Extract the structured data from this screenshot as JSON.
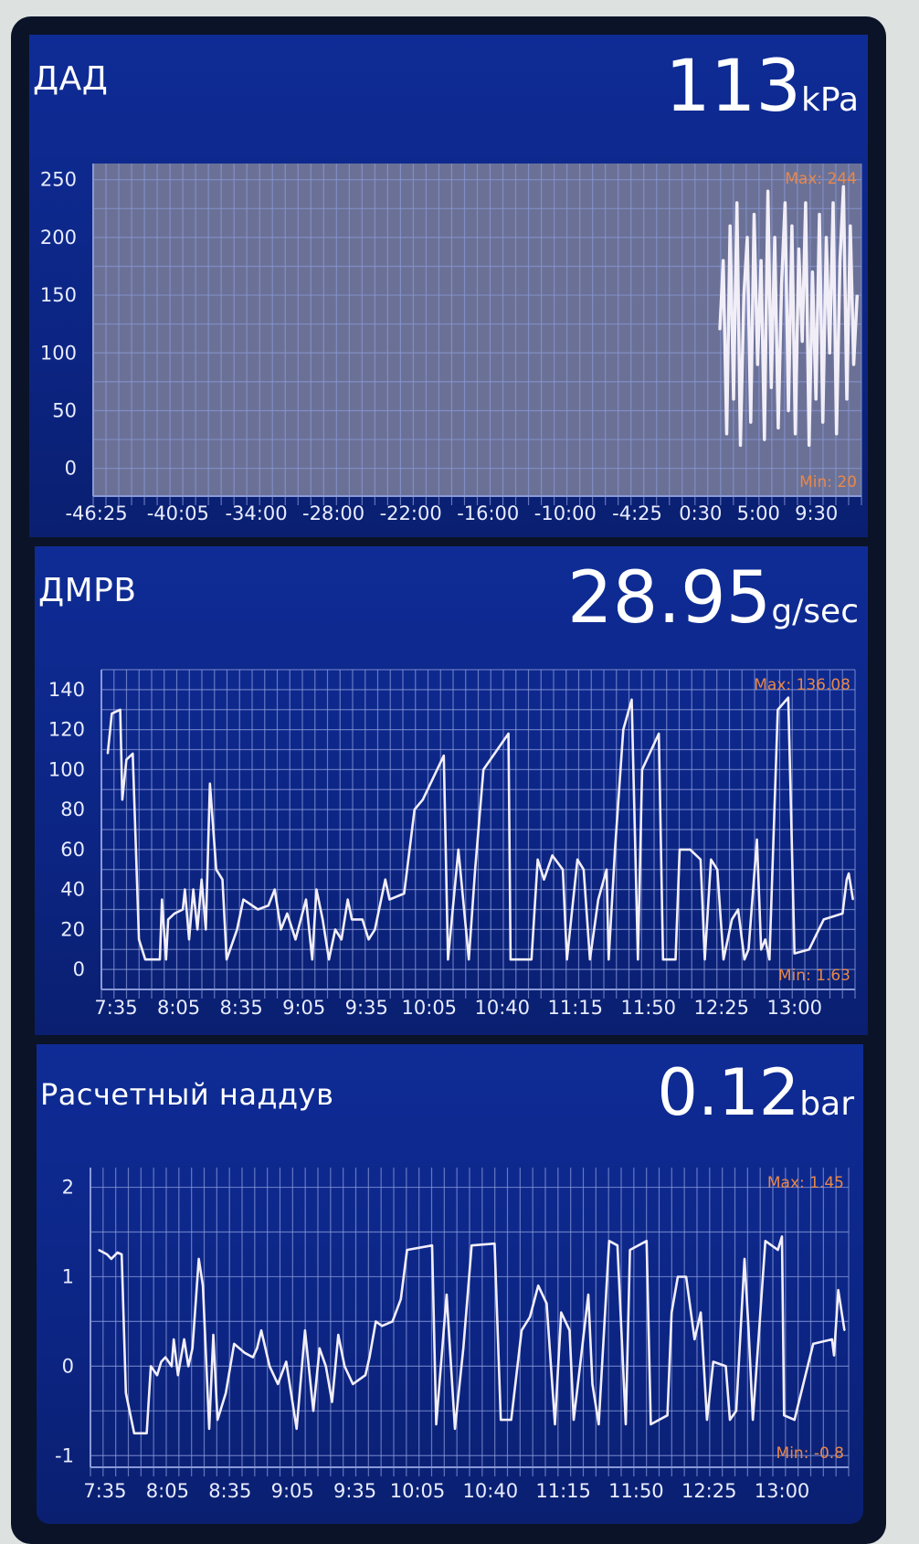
{
  "panels": [
    {
      "title": "ДАД",
      "value": "113",
      "unit": "kPa"
    },
    {
      "title": "ДМРВ",
      "value": "28.95",
      "unit": "g/sec"
    },
    {
      "title": "Расчетный наддув",
      "value": "0.12",
      "unit": "bar"
    }
  ],
  "colors": {
    "panel_bg": "#0f2c96",
    "line": "#f2eef8",
    "grid": "#8a9ad8",
    "plot1_bg": "#6b7196",
    "maxmin": "#e8884a"
  },
  "chart_data": [
    {
      "type": "line",
      "title": "ДАД",
      "max_label": "Max: 244",
      "min_label": "Min: 20",
      "xlim": [
        "-46:40",
        "13:00"
      ],
      "ylim": [
        -24,
        264
      ],
      "yticks": [
        0,
        50,
        100,
        150,
        200,
        250
      ],
      "xticks": [
        "-46:25",
        "-40:05",
        "-34:00",
        "-28:00",
        "-22:00",
        "-16:00",
        "-10:00",
        "-4:25",
        "0:30",
        "5:00",
        "9:30"
      ],
      "grid": true,
      "x": [
        "2:00",
        "2:16",
        "2:32",
        "2:48",
        "3:04",
        "3:20",
        "3:36",
        "3:52",
        "4:08",
        "4:24",
        "4:40",
        "4:56",
        "5:12",
        "5:28",
        "5:44",
        "6:00",
        "6:16",
        "6:32",
        "6:48",
        "7:04",
        "7:20",
        "7:36",
        "7:52",
        "8:08",
        "8:24",
        "8:40",
        "8:56",
        "9:12",
        "9:28",
        "9:44",
        "10:00",
        "10:16",
        "10:32",
        "10:48",
        "11:04",
        "11:20",
        "11:36",
        "11:52",
        "12:08",
        "12:24",
        "12:40"
      ],
      "y": [
        120,
        180,
        30,
        210,
        60,
        230,
        20,
        150,
        200,
        40,
        220,
        90,
        180,
        25,
        240,
        70,
        200,
        35,
        160,
        230,
        50,
        210,
        30,
        190,
        110,
        230,
        20,
        170,
        60,
        220,
        40,
        200,
        100,
        230,
        30,
        180,
        244,
        60,
        210,
        90,
        150
      ]
    },
    {
      "type": "line",
      "title": "ДМРВ",
      "max_label": "Max: 136.08",
      "min_label": "Min: 1.63",
      "xlim": [
        "7:28",
        "13:29"
      ],
      "ylim": [
        -10,
        150
      ],
      "yticks": [
        0,
        20,
        40,
        60,
        80,
        100,
        120,
        140
      ],
      "xticks": [
        "7:35",
        "8:05",
        "8:35",
        "9:05",
        "9:35",
        "10:05",
        "10:40",
        "11:15",
        "11:50",
        "12:25",
        "13:00"
      ],
      "grid": true,
      "x": [
        "7:31",
        "7:33",
        "7:37",
        "7:38",
        "7:40",
        "7:43",
        "7:46",
        "7:49",
        "7:56",
        "7:57",
        "7:59",
        "8:00",
        "8:03",
        "8:07",
        "8:08",
        "8:10",
        "8:12",
        "8:14",
        "8:16",
        "8:18",
        "8:20",
        "8:23",
        "8:26",
        "8:28",
        "8:33",
        "8:36",
        "8:43",
        "8:48",
        "8:51",
        "8:54",
        "8:57",
        "9:01",
        "9:06",
        "9:09",
        "9:11",
        "9:14",
        "9:17",
        "9:20",
        "9:23",
        "9:26",
        "9:28",
        "9:33",
        "9:36",
        "9:39",
        "9:44",
        "9:46",
        "9:53",
        "9:58",
        "10:02",
        "10:12",
        "10:14",
        "10:19",
        "10:24",
        "10:27",
        "10:31",
        "10:43",
        "10:44",
        "10:50",
        "10:54",
        "10:57",
        "11:00",
        "11:04",
        "11:09",
        "11:11",
        "11:16",
        "11:19",
        "11:22",
        "11:26",
        "11:30",
        "11:31",
        "11:34",
        "11:38",
        "11:42",
        "11:45",
        "11:47",
        "11:55",
        "11:57",
        "12:03",
        "12:05",
        "12:10",
        "12:15",
        "12:17",
        "12:20",
        "12:23",
        "12:26",
        "12:30",
        "12:33",
        "12:36",
        "12:38",
        "12:42",
        "12:44",
        "12:46",
        "12:48",
        "12:52",
        "12:57",
        "13:00",
        "13:07",
        "13:14",
        "13:23",
        "13:25",
        "13:26",
        "13:28"
      ],
      "y": [
        108,
        128,
        130,
        85,
        105,
        108,
        15,
        5,
        5,
        35,
        5,
        25,
        28,
        30,
        40,
        15,
        40,
        20,
        45,
        20,
        93,
        50,
        45,
        5,
        20,
        35,
        30,
        32,
        40,
        20,
        28,
        15,
        35,
        5,
        40,
        25,
        5,
        20,
        15,
        35,
        25,
        25,
        15,
        20,
        45,
        35,
        38,
        80,
        85,
        107,
        5,
        60,
        5,
        50,
        100,
        118,
        5,
        5,
        5,
        55,
        45,
        57,
        50,
        5,
        55,
        50,
        5,
        35,
        50,
        5,
        60,
        120,
        135,
        5,
        100,
        118,
        5,
        5,
        60,
        60,
        55,
        5,
        55,
        50,
        5,
        25,
        30,
        5,
        10,
        65,
        10,
        15,
        5,
        130,
        136,
        8,
        10,
        25,
        28,
        45,
        48,
        35
      ]
    },
    {
      "type": "line",
      "title": "Расчетный наддув",
      "max_label": "Max: 1.45",
      "min_label": "Min: -0.8",
      "xlim": [
        "7:28",
        "13:32"
      ],
      "ylim": [
        -1.13,
        2.22
      ],
      "yticks": [
        -1,
        0,
        1,
        2
      ],
      "xticks": [
        "7:35",
        "8:05",
        "8:35",
        "9:05",
        "9:35",
        "10:05",
        "10:40",
        "11:15",
        "11:50",
        "12:25",
        "13:00"
      ],
      "grid": true,
      "x": [
        "7:32",
        "7:36",
        "7:38",
        "7:41",
        "7:43",
        "7:45",
        "7:49",
        "7:55",
        "7:57",
        "8:00",
        "8:02",
        "8:04",
        "8:07",
        "8:08",
        "8:10",
        "8:13",
        "8:15",
        "8:17",
        "8:20",
        "8:22",
        "8:25",
        "8:27",
        "8:29",
        "8:33",
        "8:37",
        "8:42",
        "8:46",
        "8:48",
        "8:50",
        "8:54",
        "8:58",
        "9:02",
        "9:07",
        "9:11",
        "9:15",
        "9:18",
        "9:21",
        "9:24",
        "9:27",
        "9:30",
        "9:34",
        "9:40",
        "9:42",
        "9:45",
        "9:48",
        "9:53",
        "9:57",
        "10:00",
        "10:12",
        "10:14",
        "10:19",
        "10:23",
        "10:27",
        "10:31",
        "10:42",
        "10:45",
        "10:50",
        "10:55",
        "10:59",
        "11:03",
        "11:07",
        "11:11",
        "11:14",
        "11:18",
        "11:20",
        "11:23",
        "11:27",
        "11:29",
        "11:32",
        "11:37",
        "11:41",
        "11:45",
        "11:47",
        "11:55",
        "11:57",
        "12:05",
        "12:07",
        "12:10",
        "12:14",
        "12:18",
        "12:21",
        "12:24",
        "12:27",
        "12:33",
        "12:35",
        "12:38",
        "12:42",
        "12:44",
        "12:46",
        "12:49",
        "12:52",
        "12:58",
        "13:00",
        "13:01",
        "13:06",
        "13:15",
        "13:24",
        "13:25",
        "13:27",
        "13:30"
      ],
      "y": [
        1.3,
        1.25,
        1.2,
        1.27,
        1.25,
        -0.3,
        -0.75,
        -0.75,
        0.0,
        -0.1,
        0.05,
        0.1,
        0.0,
        0.3,
        -0.1,
        0.3,
        0.0,
        0.2,
        1.2,
        0.9,
        -0.7,
        0.35,
        -0.6,
        -0.3,
        0.25,
        0.15,
        0.1,
        0.2,
        0.4,
        0.0,
        -0.2,
        0.05,
        -0.7,
        0.4,
        -0.5,
        0.2,
        0.0,
        -0.4,
        0.35,
        0.0,
        -0.2,
        -0.1,
        0.1,
        0.5,
        0.45,
        0.5,
        0.75,
        1.3,
        1.35,
        -0.65,
        0.8,
        -0.7,
        0.2,
        1.35,
        1.37,
        -0.6,
        -0.6,
        0.4,
        0.55,
        0.9,
        0.7,
        -0.65,
        0.6,
        0.4,
        -0.6,
        0.0,
        0.8,
        -0.2,
        -0.65,
        1.4,
        1.35,
        -0.65,
        1.3,
        1.4,
        -0.65,
        -0.55,
        0.6,
        1.0,
        1.0,
        0.3,
        0.6,
        -0.6,
        0.05,
        0.0,
        -0.6,
        -0.5,
        1.2,
        0.4,
        -0.6,
        0.4,
        1.4,
        1.3,
        1.45,
        -0.55,
        -0.6,
        0.25,
        0.3,
        0.12,
        0.85,
        0.4
      ]
    }
  ]
}
